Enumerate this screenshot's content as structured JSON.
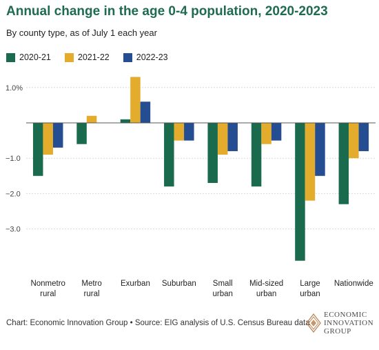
{
  "title": "Annual change in the age 0-4 population, 2020-2023",
  "subtitle": "By county type, as of July 1 each year",
  "source": "Chart: Economic Innovation Group • Source: EIG analysis of U.S. Census Bureau data",
  "logo": {
    "line1": "ECONOMIC",
    "line2": "INNOVATION",
    "line3": "GROUP"
  },
  "colors": {
    "2020-21": "#1a6b4e",
    "2021-22": "#e3ac2c",
    "2022-23": "#254d91",
    "grid": "#d9d9d9",
    "zero": "#555555"
  },
  "chart_data": {
    "type": "bar",
    "title": "Annual change in the age 0-4 population, 2020-2023",
    "subtitle": "By county type, as of July 1 each year",
    "xlabel": "",
    "ylabel": "",
    "ylim": [
      -4.0,
      1.5
    ],
    "yticks": [
      1.0,
      -1.0,
      -2.0,
      -3.0
    ],
    "ytick_labels": [
      "1.0%",
      "−1.0",
      "−2.0",
      "−3.0"
    ],
    "grid": true,
    "legend_position": "top-left",
    "categories": [
      [
        "Nonmetro",
        "rural"
      ],
      [
        "Metro",
        "rural"
      ],
      [
        "Exurban"
      ],
      [
        "Suburban"
      ],
      [
        "Small",
        "urban"
      ],
      [
        "Mid-sized",
        "urban"
      ],
      [
        "Large",
        "urban"
      ],
      [
        "Nationwide"
      ]
    ],
    "series": [
      {
        "name": "2020-21",
        "values": [
          -1.5,
          -0.6,
          0.1,
          -1.8,
          -1.7,
          -1.8,
          -3.9,
          -2.3
        ]
      },
      {
        "name": "2021-22",
        "values": [
          -0.9,
          0.2,
          1.3,
          -0.5,
          -0.9,
          -0.6,
          -2.2,
          -1.0
        ]
      },
      {
        "name": "2022-23",
        "values": [
          -0.7,
          0.0,
          0.6,
          -0.5,
          -0.8,
          -0.5,
          -1.5,
          -0.8
        ]
      }
    ]
  }
}
